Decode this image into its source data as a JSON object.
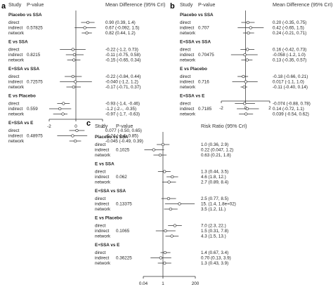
{
  "chart_data": [
    {
      "panel": "a",
      "type": "forest",
      "headers": {
        "study": "Study",
        "pvalue": "P-value",
        "effect": "Mean Difference (95% CrI)"
      },
      "xlim": [
        -2,
        2
      ],
      "ticks": [
        {
          "v": -2,
          "label": "-2"
        },
        {
          "v": 0,
          "label": "0"
        },
        {
          "v": 2,
          "label": "2"
        }
      ],
      "reference": 0,
      "scale": "linear",
      "groups": [
        {
          "title": "Placebo vs SSA",
          "pvalue": "0.57825",
          "rows": [
            {
              "label": "direct",
              "est": 0.9,
              "lo": 0.39,
              "hi": 1.4,
              "text": "0.90 (0.39, 1.4)"
            },
            {
              "label": "indirect",
              "est": 0.67,
              "lo": -0.092,
              "hi": 1.5,
              "text": "0.67 (-0.092, 1.5)"
            },
            {
              "label": "network",
              "est": 0.82,
              "lo": 0.44,
              "hi": 1.2,
              "text": "0.82 (0.44, 1.2)"
            }
          ]
        },
        {
          "title": "E vs SSA",
          "pvalue": "0.8215",
          "rows": [
            {
              "label": "direct",
              "est": -0.22,
              "lo": -1.2,
              "hi": 0.73,
              "text": "-0.22 (-1.2, 0.73)"
            },
            {
              "label": "indirect",
              "est": -0.11,
              "lo": -0.75,
              "hi": 0.58,
              "text": "-0.11 (-0.75, 0.58)"
            },
            {
              "label": "network",
              "est": -0.15,
              "lo": -0.65,
              "hi": 0.34,
              "text": "-0.15 (-0.65, 0.34)"
            }
          ]
        },
        {
          "title": "E+SSA vs SSA",
          "pvalue": "0.72575",
          "rows": [
            {
              "label": "direct",
              "est": -0.22,
              "lo": -0.84,
              "hi": 0.44,
              "text": "-0.22 (-0.84, 0.44)"
            },
            {
              "label": "indirect",
              "est": -0.04,
              "lo": -1.2,
              "hi": 1.2,
              "text": "-0.040 (-1.2, 1.2)"
            },
            {
              "label": "network",
              "est": -0.17,
              "lo": -0.71,
              "hi": 0.37,
              "text": "-0.17 (-0.71, 0.37)"
            }
          ]
        },
        {
          "title": "E vs Placebo",
          "pvalue": "0.559",
          "rows": [
            {
              "label": "direct",
              "est": -0.93,
              "lo": -1.4,
              "hi": -0.46,
              "text": "-0.93 (-1.4, -0.46)"
            },
            {
              "label": "indirect",
              "est": -1.2,
              "lo": -2.3,
              "hi": -0.35,
              "text": "-1.2 (-2.-, -0.35)"
            },
            {
              "label": "network",
              "est": -0.97,
              "lo": -1.7,
              "hi": -0.63,
              "text": "-0.97 (-1.7, -0.63)"
            }
          ]
        },
        {
          "title": "E+SSA vs E",
          "pvalue": "0.48975",
          "rows": [
            {
              "label": "direct",
              "est": 0.077,
              "lo": -0.5,
              "hi": 0.65,
              "text": "0.077 (-0.50, 0.65)"
            },
            {
              "label": "indirect",
              "est": -0.24,
              "lo": -1.4,
              "hi": 0.85,
              "text": "-0.24 (-1.4, 0.85)"
            },
            {
              "label": "network",
              "est": -0.045,
              "lo": -0.49,
              "hi": 0.39,
              "text": "-0.045 (-0.49, 0.39)"
            }
          ]
        }
      ]
    },
    {
      "panel": "b",
      "type": "forest",
      "headers": {
        "study": "Study",
        "pvalue": "P-value",
        "effect": "Mean Difference (95% CrI)"
      },
      "xlim": [
        -2,
        2
      ],
      "ticks": [
        {
          "v": -2,
          "label": "-2"
        },
        {
          "v": 0,
          "label": "0"
        },
        {
          "v": 2,
          "label": "2"
        }
      ],
      "reference": 0,
      "scale": "linear",
      "groups": [
        {
          "title": "Placebo vs SSA",
          "pvalue": "0.707",
          "rows": [
            {
              "label": "direct",
              "est": 0.2,
              "lo": -0.35,
              "hi": 0.75,
              "text": "0.20 (-0.35, 0.75)"
            },
            {
              "label": "indirect",
              "est": 0.42,
              "lo": -0.65,
              "hi": 1.5,
              "text": "0.42 (-0.65, 1.5)"
            },
            {
              "label": "network",
              "est": 0.24,
              "lo": -0.21,
              "hi": 0.71,
              "text": "0.24 (-0.21, 0.71)"
            }
          ]
        },
        {
          "title": "E+SSA vs SSA",
          "pvalue": "0.70475",
          "rows": [
            {
              "label": "direct",
              "est": 0.16,
              "lo": -0.42,
              "hi": 0.73,
              "text": "0.16 (-0.42, 0.73)"
            },
            {
              "label": "indirect",
              "est": -0.058,
              "lo": -1.2,
              "hi": 1.0,
              "text": "-0.058 (-1.2, 1.0)"
            },
            {
              "label": "network",
              "est": 0.13,
              "lo": -0.35,
              "hi": 0.57,
              "text": "0.13 (-0.35, 0.57)"
            }
          ]
        },
        {
          "title": "E vs Placebo",
          "pvalue": "0.716",
          "rows": [
            {
              "label": "direct",
              "est": -0.18,
              "lo": -0.66,
              "hi": 0.21,
              "text": "-0.18 (-0.66, 0.21)"
            },
            {
              "label": "indirect",
              "est": 0.017,
              "lo": -1.1,
              "hi": 1.0,
              "text": "0.017 (-1.1, 1.0)"
            },
            {
              "label": "network",
              "est": -0.11,
              "lo": -0.4,
              "hi": 0.14,
              "text": "-0.11 (-0.40, 0.14)"
            }
          ]
        },
        {
          "title": "E+SSA vs E",
          "pvalue": "0.7185",
          "rows": [
            {
              "label": "direct",
              "est": -0.074,
              "lo": -0.88,
              "hi": 0.78,
              "text": "-0.074 (-0.88, 0.78)"
            },
            {
              "label": "indirect",
              "est": 0.14,
              "lo": -0.72,
              "hi": 1.1,
              "text": "0.14 (-0.72, 1.1)"
            },
            {
              "label": "network",
              "est": 0.039,
              "lo": -0.54,
              "hi": 0.62,
              "text": "0.039 (-0.54, 0.62)"
            }
          ]
        }
      ]
    },
    {
      "panel": "c",
      "type": "forest",
      "headers": {
        "study": "Study",
        "pvalue": "P-value",
        "effect": "Risk Ratio (95% CrI)"
      },
      "xlim": [
        0.04,
        200
      ],
      "ticks": [
        {
          "v": 0.04,
          "label": "0.04"
        },
        {
          "v": 1,
          "label": "1"
        },
        {
          "v": 200,
          "label": "200"
        }
      ],
      "reference": 1,
      "scale": "log",
      "groups": [
        {
          "title": "Placebo vs SSA",
          "pvalue": "0.1025",
          "rows": [
            {
              "label": "direct",
              "est": 1.0,
              "lo": 0.36,
              "hi": 2.9,
              "text": "1.0 (0.36, 2.9)"
            },
            {
              "label": "indirect",
              "est": 0.22,
              "lo": 0.047,
              "hi": 1.2,
              "text": "0.22 (0.047, 1.2)"
            },
            {
              "label": "network",
              "est": 0.63,
              "lo": 0.21,
              "hi": 1.8,
              "text": "0.63 (0.21, 1.8)"
            }
          ]
        },
        {
          "title": "E vs SSA",
          "pvalue": "0.062",
          "rows": [
            {
              "label": "direct",
              "est": 1.3,
              "lo": 0.44,
              "hi": 3.5,
              "text": "1.3 (0.44, 3.5)"
            },
            {
              "label": "indirect",
              "est": 4.6,
              "lo": 1.8,
              "hi": 12,
              "text": "4.6 (1.8, 12.)"
            },
            {
              "label": "network",
              "est": 2.7,
              "lo": 0.89,
              "hi": 8.4,
              "text": "2.7 (0.89, 8.4)"
            }
          ]
        },
        {
          "title": "E+SSA vs SSA",
          "pvalue": "0.13375",
          "rows": [
            {
              "label": "direct",
              "est": 2.5,
              "lo": 0.77,
              "hi": 8.5,
              "text": "2.5 (0.77, 8.5)"
            },
            {
              "label": "indirect",
              "est": 15,
              "lo": 1.4,
              "hi": 180,
              "text": "15. (1.4, 1.8e+02)"
            },
            {
              "label": "network",
              "est": 3.5,
              "lo": 1.2,
              "hi": 11,
              "text": "3.5 (1.2, 11.)"
            }
          ]
        },
        {
          "title": "E vs Placebo",
          "pvalue": "0.1065",
          "rows": [
            {
              "label": "direct",
              "est": 7.0,
              "lo": 2.3,
              "hi": 22,
              "text": "7.0 (2.3, 22.)"
            },
            {
              "label": "indirect",
              "est": 1.5,
              "lo": 0.31,
              "hi": 7.8,
              "text": "1.5 (0.31, 7.8)"
            },
            {
              "label": "network",
              "est": 4.3,
              "lo": 1.5,
              "hi": 13,
              "text": "4.3 (1.5, 13.)"
            }
          ]
        },
        {
          "title": "E+SSA vs E",
          "pvalue": "0.36225",
          "rows": [
            {
              "label": "direct",
              "est": 1.4,
              "lo": 0.67,
              "hi": 3.4,
              "text": "1.4 (0.67, 3.4)"
            },
            {
              "label": "indirect",
              "est": 0.7,
              "lo": 0.13,
              "hi": 3.9,
              "text": "0.70 (0.13, 3.9)"
            },
            {
              "label": "network",
              "est": 1.3,
              "lo": 0.43,
              "hi": 3.9,
              "text": "1.3 (0.43, 3.9)"
            }
          ]
        }
      ]
    }
  ]
}
